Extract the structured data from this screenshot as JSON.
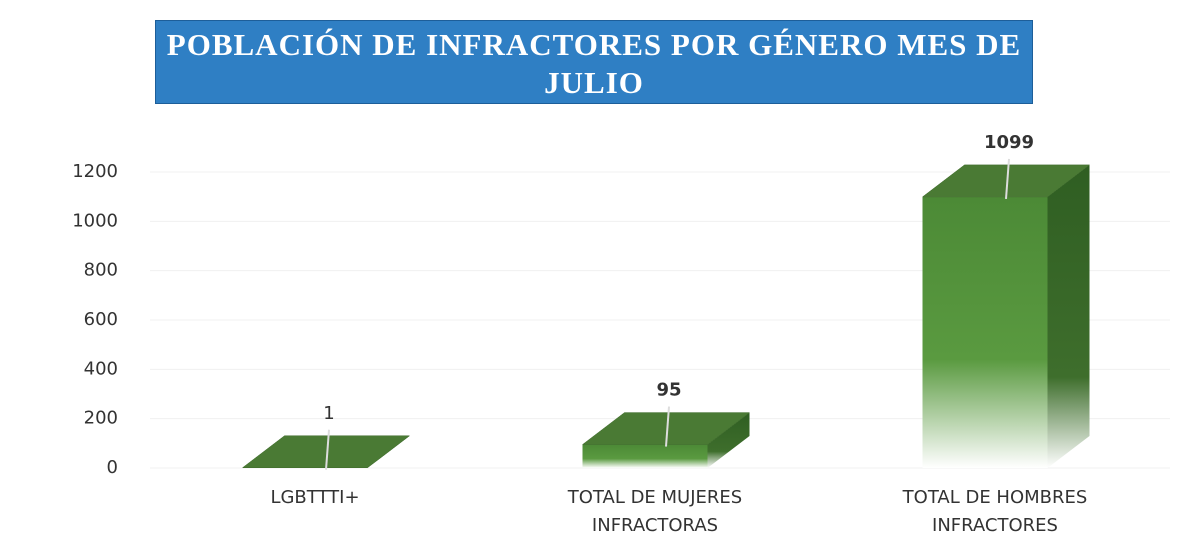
{
  "chart_data": {
    "type": "bar3d",
    "title": "POBLACIÓN DE INFRACTORES POR GÉNERO MES DE JULIO",
    "categories": [
      "LGBTTTI+",
      "TOTAL DE MUJERES INFRACTORAS",
      "TOTAL DE HOMBRES INFRACTORES"
    ],
    "values": [
      1,
      95,
      1099
    ],
    "color": "#4a7a34",
    "ylim": [
      0,
      1200
    ],
    "yticks": [
      0,
      200,
      400,
      600,
      800,
      1000,
      1200
    ],
    "grid": true
  }
}
